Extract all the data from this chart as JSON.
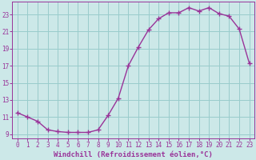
{
  "x": [
    0,
    1,
    2,
    3,
    4,
    5,
    6,
    7,
    8,
    9,
    10,
    11,
    12,
    13,
    14,
    15,
    16,
    17,
    18,
    19,
    20,
    21,
    22,
    23
  ],
  "y": [
    11.5,
    11.0,
    10.5,
    9.5,
    9.3,
    9.2,
    9.2,
    9.2,
    9.5,
    11.2,
    13.2,
    17.0,
    19.2,
    21.2,
    22.5,
    23.2,
    23.2,
    23.8,
    23.4,
    23.8,
    23.1,
    22.8,
    21.3,
    17.3
  ],
  "line_color": "#993399",
  "marker": "+",
  "marker_size": 4,
  "background_color": "#cce8e8",
  "grid_color": "#99cccc",
  "xlabel": "Windchill (Refroidissement éolien,°C)",
  "xlim": [
    -0.5,
    23.5
  ],
  "ylim": [
    8.5,
    24.5
  ],
  "yticks": [
    9,
    11,
    13,
    15,
    17,
    19,
    21,
    23
  ],
  "xticks": [
    0,
    1,
    2,
    3,
    4,
    5,
    6,
    7,
    8,
    9,
    10,
    11,
    12,
    13,
    14,
    15,
    16,
    17,
    18,
    19,
    20,
    21,
    22,
    23
  ],
  "tick_color": "#993399",
  "label_color": "#993399",
  "font_size": 5.5,
  "label_font_size": 6.5,
  "line_width": 1.0
}
